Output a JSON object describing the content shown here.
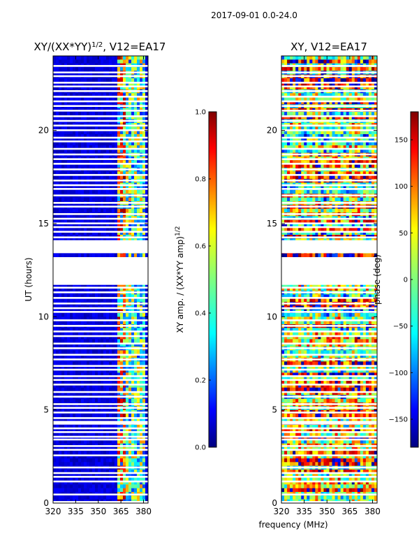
{
  "figure_title": "2017-09-01 0.0-24.0",
  "chart_data": [
    {
      "type": "heatmap",
      "title_main": "XY/(XX*YY)",
      "title_power": "1/2",
      "title_rest": ", V12=EA17",
      "xlabel": "frequency (MHz)",
      "ylabel": "UT (hours)",
      "x_ticks": [
        320,
        335,
        350,
        365,
        380
      ],
      "y_ticks": [
        0,
        5,
        10,
        15,
        20
      ],
      "xlim": [
        320,
        383
      ],
      "ylim": [
        0,
        24
      ],
      "colormap": "jet",
      "colorbar": {
        "label_main": "XY amp. / (XX*YY amp)",
        "label_power": "1/2",
        "ticks": [
          0.0,
          0.2,
          0.4,
          0.6,
          0.8,
          1.0
        ],
        "tick_labels": [
          "0.0",
          "0.2",
          "0.4",
          "0.6",
          "0.8",
          "1.0"
        ],
        "range": [
          0,
          1
        ]
      }
    },
    {
      "type": "heatmap",
      "title": "XY, V12=EA17",
      "x_ticks": [
        320,
        335,
        350,
        365,
        380
      ],
      "y_ticks": [
        0,
        5,
        10,
        15,
        20
      ],
      "xlim": [
        320,
        383
      ],
      "ylim": [
        0,
        24
      ],
      "colormap": "jet",
      "colorbar": {
        "label": "phase (deg)",
        "ticks": [
          -150,
          -100,
          -50,
          0,
          50,
          100,
          150
        ],
        "tick_labels": [
          "−150",
          "−100",
          "−50",
          "0",
          "50",
          "100",
          "150"
        ],
        "range": [
          -180,
          180
        ]
      }
    }
  ],
  "flagged_rows_hours": [
    0.05,
    0.45,
    1.15,
    1.4,
    1.6,
    1.9,
    2.55,
    2.85,
    3.05,
    3.4,
    3.55,
    3.8,
    4.0,
    4.25,
    4.35,
    4.55,
    4.85,
    5.1,
    5.3,
    5.7,
    5.95,
    6.35,
    6.6,
    6.8,
    7.15,
    7.35,
    7.7,
    7.95,
    8.3,
    8.55,
    8.95,
    9.2,
    9.5,
    9.8,
    10.25,
    10.45,
    10.7,
    11.0,
    11.3,
    11.55,
    11.75,
    12.0,
    12.3,
    12.55,
    13.0,
    13.45,
    13.65,
    14.05,
    14.25,
    14.55,
    14.8,
    15.0,
    15.25,
    15.5,
    15.9,
    16.1,
    16.5,
    16.85,
    17.05,
    17.3,
    17.6,
    17.9,
    18.2,
    18.45,
    18.7,
    19.0,
    19.4,
    19.6,
    20.0,
    20.25,
    20.5,
    20.75,
    21.05,
    21.3,
    21.55,
    21.8,
    22.1,
    22.35,
    22.55,
    22.9,
    23.1,
    23.45
  ],
  "flagged_blocks_hours": [
    [
      11.8,
      13.2
    ],
    [
      13.45,
      14.1
    ]
  ]
}
